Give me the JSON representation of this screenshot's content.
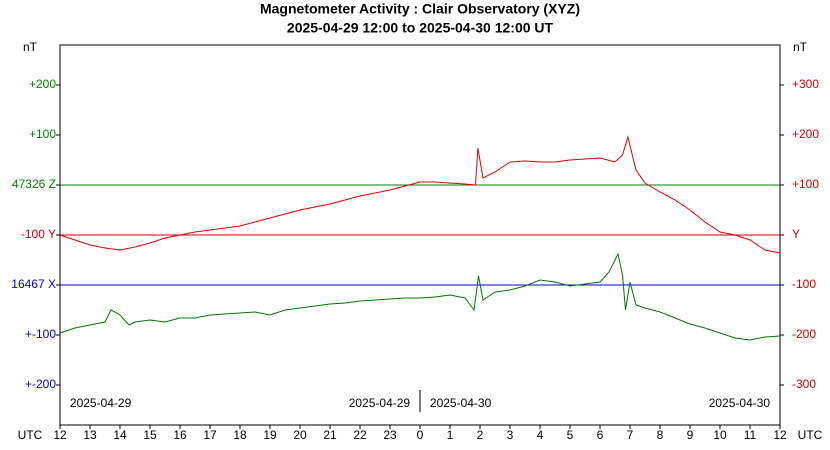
{
  "chart_data": {
    "type": "line",
    "title": "Magnetometer Activity : Clair Observatory (XYZ)",
    "subtitle": "2025-04-29 12:00 to 2025-04-30 12:00 UT",
    "y_unit_left": "nT",
    "y_unit_right": "nT",
    "x_unit_left": "UTC",
    "x_unit_right": "UTC",
    "xlim": [
      0,
      24
    ],
    "xticks": [
      {
        "value": 0,
        "label": "12"
      },
      {
        "value": 1,
        "label": "13"
      },
      {
        "value": 2,
        "label": "14"
      },
      {
        "value": 3,
        "label": "15"
      },
      {
        "value": 4,
        "label": "16"
      },
      {
        "value": 5,
        "label": "17"
      },
      {
        "value": 6,
        "label": "18"
      },
      {
        "value": 7,
        "label": "19"
      },
      {
        "value": 8,
        "label": "20"
      },
      {
        "value": 9,
        "label": "21"
      },
      {
        "value": 10,
        "label": "22"
      },
      {
        "value": 11,
        "label": "23"
      },
      {
        "value": 12,
        "label": "0"
      },
      {
        "value": 13,
        "label": "1"
      },
      {
        "value": 14,
        "label": "2"
      },
      {
        "value": 15,
        "label": "3"
      },
      {
        "value": 16,
        "label": "4"
      },
      {
        "value": 17,
        "label": "5"
      },
      {
        "value": 18,
        "label": "6"
      },
      {
        "value": 19,
        "label": "7"
      },
      {
        "value": 20,
        "label": "8"
      },
      {
        "value": 21,
        "label": "9"
      },
      {
        "value": 22,
        "label": "10"
      },
      {
        "value": 23,
        "label": "11"
      },
      {
        "value": 24,
        "label": "12"
      }
    ],
    "ylim": [
      -380,
      380
    ],
    "yticks": [
      {
        "value": 300,
        "label": "+300"
      },
      {
        "value": 200,
        "label": "+200"
      },
      {
        "value": 100,
        "label": "+100"
      },
      {
        "value": 0,
        "label": "Y"
      },
      {
        "value": -100,
        "label": "-100"
      },
      {
        "value": -200,
        "label": "-200"
      },
      {
        "value": -300,
        "label": "-300"
      }
    ],
    "ytick_color": "#cc0000",
    "left_labels": [
      {
        "value": 300,
        "label": "+200",
        "color": "#008000"
      },
      {
        "value": 200,
        "label": "+100",
        "color": "#008000"
      },
      {
        "value": 100,
        "label": "47326 Z",
        "color": "#008000"
      },
      {
        "value": 0,
        "label": "-100   Y",
        "color": "#cc0000"
      },
      {
        "value": -100,
        "label": "16467 X",
        "color": "#0000cc"
      },
      {
        "value": -200,
        "label": "+-100",
        "color": "#0000cc"
      },
      {
        "value": -300,
        "label": "+-200",
        "color": "#0000cc"
      }
    ],
    "reference_lines": [
      {
        "value": 100,
        "color": "#008000"
      },
      {
        "value": 0,
        "color": "#cc0000"
      },
      {
        "value": -100,
        "color": "#0000cc"
      }
    ],
    "annotations": [
      {
        "x": 0.33,
        "label": "2025-04-29"
      },
      {
        "x": 11.67,
        "label": "2025-04-29"
      },
      {
        "x": 12.33,
        "label": "2025-04-30"
      },
      {
        "x": 23.67,
        "label": "2025-04-30"
      }
    ],
    "series": [
      {
        "color": "#dd0000",
        "x": [
          0,
          0.5,
          1,
          1.5,
          2,
          2.5,
          3,
          3.5,
          4,
          4.5,
          5,
          5.5,
          6,
          6.5,
          7,
          7.5,
          8,
          8.5,
          9,
          9.5,
          10,
          10.5,
          11,
          11.5,
          12,
          12.5,
          13,
          13.5,
          13.85,
          13.93,
          14.1,
          14.5,
          15,
          15.5,
          16,
          16.5,
          17,
          17.5,
          18,
          18.5,
          18.75,
          18.93,
          19.2,
          19.5,
          20,
          20.5,
          21,
          21.5,
          22,
          22.5,
          23,
          23.5,
          24
        ],
        "values": [
          0,
          -10,
          -20,
          -26,
          -30,
          -24,
          -16,
          -6,
          0,
          6,
          10,
          14,
          18,
          26,
          34,
          42,
          50,
          56,
          62,
          70,
          78,
          84,
          90,
          98,
          106,
          106,
          104,
          102,
          100,
          174,
          114,
          126,
          146,
          148,
          146,
          146,
          150,
          152,
          154,
          146,
          160,
          196,
          130,
          104,
          86,
          70,
          50,
          26,
          6,
          0,
          -10,
          -30,
          -36
        ]
      },
      {
        "color": "#007700",
        "x": [
          0,
          0.5,
          1,
          1.5,
          1.7,
          2,
          2.3,
          2.5,
          3,
          3.5,
          4,
          4.5,
          5,
          5.5,
          6,
          6.5,
          7,
          7.5,
          8,
          8.5,
          9,
          9.5,
          10,
          10.5,
          11,
          11.5,
          12,
          12.5,
          13,
          13.5,
          13.8,
          13.95,
          14.1,
          14.5,
          15,
          15.5,
          16,
          16.5,
          17,
          17.5,
          18,
          18.3,
          18.6,
          18.75,
          18.85,
          19,
          19.2,
          19.5,
          20,
          20.5,
          21,
          21.5,
          22,
          22.5,
          23,
          23.5,
          24
        ],
        "values": [
          -196,
          -186,
          -180,
          -174,
          -150,
          -160,
          -180,
          -174,
          -170,
          -174,
          -166,
          -166,
          -160,
          -158,
          -156,
          -154,
          -160,
          -150,
          -146,
          -142,
          -138,
          -136,
          -132,
          -130,
          -128,
          -126,
          -126,
          -124,
          -120,
          -126,
          -150,
          -82,
          -130,
          -114,
          -110,
          -102,
          -90,
          -94,
          -102,
          -98,
          -94,
          -74,
          -38,
          -80,
          -150,
          -94,
          -140,
          -146,
          -154,
          -166,
          -178,
          -186,
          -196,
          -206,
          -210,
          -204,
          -202
        ]
      }
    ]
  }
}
